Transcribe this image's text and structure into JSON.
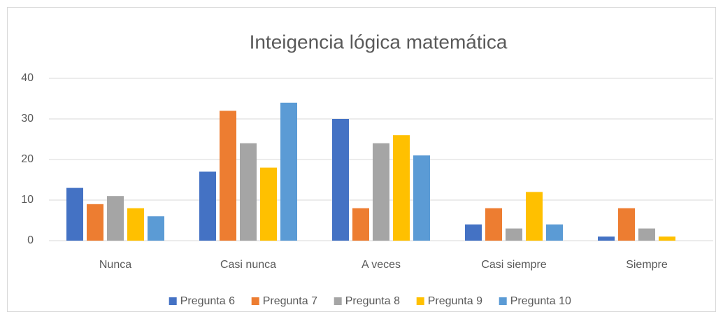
{
  "chart_data": {
    "type": "bar",
    "title": "Inteigencia lógica matemática",
    "categories": [
      "Nunca",
      "Casi nunca",
      "A veces",
      "Casi siempre",
      "Siempre"
    ],
    "series": [
      {
        "name": "Pregunta 6",
        "color": "#4472c4",
        "values": [
          13,
          17,
          30,
          4,
          1
        ]
      },
      {
        "name": "Pregunta 7",
        "color": "#ed7d31",
        "values": [
          9,
          32,
          8,
          8,
          8
        ]
      },
      {
        "name": "Pregunta 8",
        "color": "#a5a5a5",
        "values": [
          11,
          24,
          24,
          3,
          3
        ]
      },
      {
        "name": "Pregunta 9",
        "color": "#ffc000",
        "values": [
          8,
          18,
          26,
          12,
          1
        ]
      },
      {
        "name": "Pregunta 10",
        "color": "#5b9bd5",
        "values": [
          6,
          34,
          21,
          4,
          0
        ]
      }
    ],
    "ylim": [
      0,
      40
    ],
    "yticks": [
      0,
      10,
      20,
      30,
      40
    ],
    "grid": true,
    "legend": "bottom"
  }
}
